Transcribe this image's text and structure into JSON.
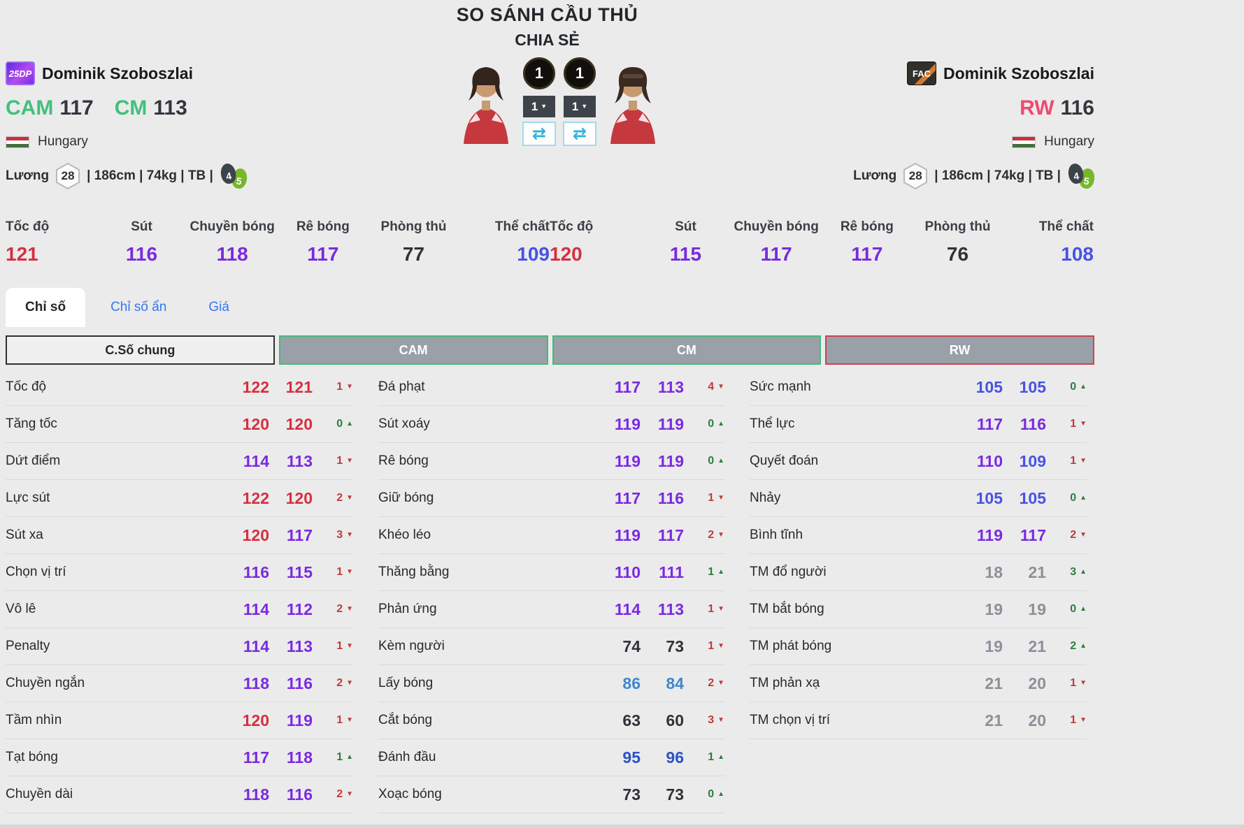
{
  "title": "SO SÁNH CẦU THỦ",
  "share_label": "CHIA SẺ",
  "sep": "|",
  "left_player": {
    "badge": "25DP",
    "name": "Dominik Szoboszlai",
    "positions": [
      {
        "pos": "CAM",
        "ovr": "117",
        "color": "#41c07d"
      },
      {
        "pos": "CM",
        "ovr": "113",
        "color": "#41c07d"
      }
    ],
    "nation": "Hungary",
    "salary_label": "Lương",
    "salary": "28",
    "body_info": "| 186cm | 74kg | TB |",
    "weak_foot": "4",
    "strong_foot": "5",
    "level_badge": "1",
    "level_select": "1"
  },
  "right_player": {
    "badge": "FAC",
    "name": "Dominik Szoboszlai",
    "positions": [
      {
        "pos": "RW",
        "ovr": "116",
        "color": "#ef4a70"
      }
    ],
    "nation": "Hungary",
    "salary_label": "Lương",
    "salary": "28",
    "body_info": "| 186cm | 74kg | TB |",
    "weak_foot": "4",
    "strong_foot": "5",
    "level_badge": "1",
    "level_select": "1"
  },
  "summary": {
    "labels": [
      "Tốc độ",
      "Sút",
      "Chuyền bóng",
      "Rê bóng",
      "Phòng thủ",
      "Thể chất"
    ],
    "left_values": [
      121,
      116,
      118,
      117,
      77,
      109
    ],
    "right_values": [
      120,
      115,
      117,
      117,
      76,
      108
    ]
  },
  "tabs": [
    {
      "label": "Chỉ số",
      "active": true
    },
    {
      "label": "Chỉ số ẩn",
      "active": false
    },
    {
      "label": "Giá",
      "active": false
    }
  ],
  "table": {
    "headers": [
      {
        "label": "C.Số chung",
        "style": "plain"
      },
      {
        "label": "CAM",
        "style": "green"
      },
      {
        "label": "CM",
        "style": "green"
      },
      {
        "label": "RW",
        "style": "red"
      }
    ],
    "groups": [
      {
        "rows": [
          {
            "label": "Tốc độ",
            "v1": 122,
            "v2": 121,
            "diff": 1,
            "dir": "down"
          },
          {
            "label": "Tăng tốc",
            "v1": 120,
            "v2": 120,
            "diff": 0,
            "dir": "up"
          },
          {
            "label": "Dứt điểm",
            "v1": 114,
            "v2": 113,
            "diff": 1,
            "dir": "down"
          },
          {
            "label": "Lực sút",
            "v1": 122,
            "v2": 120,
            "diff": 2,
            "dir": "down"
          },
          {
            "label": "Sút xa",
            "v1": 120,
            "v2": 117,
            "diff": 3,
            "dir": "down"
          },
          {
            "label": "Chọn vị trí",
            "v1": 116,
            "v2": 115,
            "diff": 1,
            "dir": "down"
          },
          {
            "label": "Vô lê",
            "v1": 114,
            "v2": 112,
            "diff": 2,
            "dir": "down"
          },
          {
            "label": "Penalty",
            "v1": 114,
            "v2": 113,
            "diff": 1,
            "dir": "down"
          },
          {
            "label": "Chuyền ngắn",
            "v1": 118,
            "v2": 116,
            "diff": 2,
            "dir": "down"
          },
          {
            "label": "Tầm nhìn",
            "v1": 120,
            "v2": 119,
            "diff": 1,
            "dir": "down"
          },
          {
            "label": "Tạt bóng",
            "v1": 117,
            "v2": 118,
            "diff": 1,
            "dir": "up"
          },
          {
            "label": "Chuyền dài",
            "v1": 118,
            "v2": 116,
            "diff": 2,
            "dir": "down"
          }
        ]
      },
      {
        "rows": [
          {
            "label": "Đá phạt",
            "v1": 117,
            "v2": 113,
            "diff": 4,
            "dir": "down"
          },
          {
            "label": "Sút xoáy",
            "v1": 119,
            "v2": 119,
            "diff": 0,
            "dir": "up"
          },
          {
            "label": "Rê bóng",
            "v1": 119,
            "v2": 119,
            "diff": 0,
            "dir": "up"
          },
          {
            "label": "Giữ bóng",
            "v1": 117,
            "v2": 116,
            "diff": 1,
            "dir": "down"
          },
          {
            "label": "Khéo léo",
            "v1": 119,
            "v2": 117,
            "diff": 2,
            "dir": "down"
          },
          {
            "label": "Thăng bằng",
            "v1": 110,
            "v2": 111,
            "diff": 1,
            "dir": "up"
          },
          {
            "label": "Phản ứng",
            "v1": 114,
            "v2": 113,
            "diff": 1,
            "dir": "down"
          },
          {
            "label": "Kèm người",
            "v1": 74,
            "v2": 73,
            "diff": 1,
            "dir": "down"
          },
          {
            "label": "Lấy bóng",
            "v1": 86,
            "v2": 84,
            "diff": 2,
            "dir": "down"
          },
          {
            "label": "Cắt bóng",
            "v1": 63,
            "v2": 60,
            "diff": 3,
            "dir": "down"
          },
          {
            "label": "Đánh đầu",
            "v1": 95,
            "v2": 96,
            "diff": 1,
            "dir": "up"
          },
          {
            "label": "Xoạc bóng",
            "v1": 73,
            "v2": 73,
            "diff": 0,
            "dir": "up"
          }
        ]
      },
      {
        "rows": [
          {
            "label": "Sức mạnh",
            "v1": 105,
            "v2": 105,
            "diff": 0,
            "dir": "up"
          },
          {
            "label": "Thể lực",
            "v1": 117,
            "v2": 116,
            "diff": 1,
            "dir": "down"
          },
          {
            "label": "Quyết đoán",
            "v1": 110,
            "v2": 109,
            "diff": 1,
            "dir": "down"
          },
          {
            "label": "Nhảy",
            "v1": 105,
            "v2": 105,
            "diff": 0,
            "dir": "up"
          },
          {
            "label": "Bình tĩnh",
            "v1": 119,
            "v2": 117,
            "diff": 2,
            "dir": "down"
          },
          {
            "label": "TM đổ người",
            "v1": 18,
            "v2": 21,
            "diff": 3,
            "dir": "up"
          },
          {
            "label": "TM bắt bóng",
            "v1": 19,
            "v2": 19,
            "diff": 0,
            "dir": "up"
          },
          {
            "label": "TM phát bóng",
            "v1": 19,
            "v2": 21,
            "diff": 2,
            "dir": "up"
          },
          {
            "label": "TM phản xạ",
            "v1": 21,
            "v2": 20,
            "diff": 1,
            "dir": "down"
          },
          {
            "label": "TM chọn vị trí",
            "v1": 21,
            "v2": 20,
            "diff": 1,
            "dir": "down"
          }
        ]
      }
    ]
  },
  "colors": {
    "accent_green": "#41c07d",
    "accent_pink": "#ef4a70",
    "tab_blue": "#3576f0",
    "swap_cyan": "#2fb4d8",
    "header_gray": "#9aa0a8",
    "header_green": "#45b97c",
    "header_red": "#cc4452",
    "diff_up": "#2e7d3c",
    "diff_down": "#c03a3a"
  },
  "stat_colors": {
    "thresholds": [
      {
        "min": 120,
        "color": "#d62f40"
      },
      {
        "min": 110,
        "color": "#7a2ae0"
      },
      {
        "min": 100,
        "color": "#4753e3"
      },
      {
        "min": 90,
        "color": "#2b52c4"
      },
      {
        "min": 80,
        "color": "#4287cc"
      },
      {
        "min": 30,
        "color": "#2f3338"
      }
    ],
    "default": "#8c9099"
  },
  "icons": {
    "swap": "⇄",
    "up": "▲",
    "down": "▼",
    "caret": "▼"
  }
}
